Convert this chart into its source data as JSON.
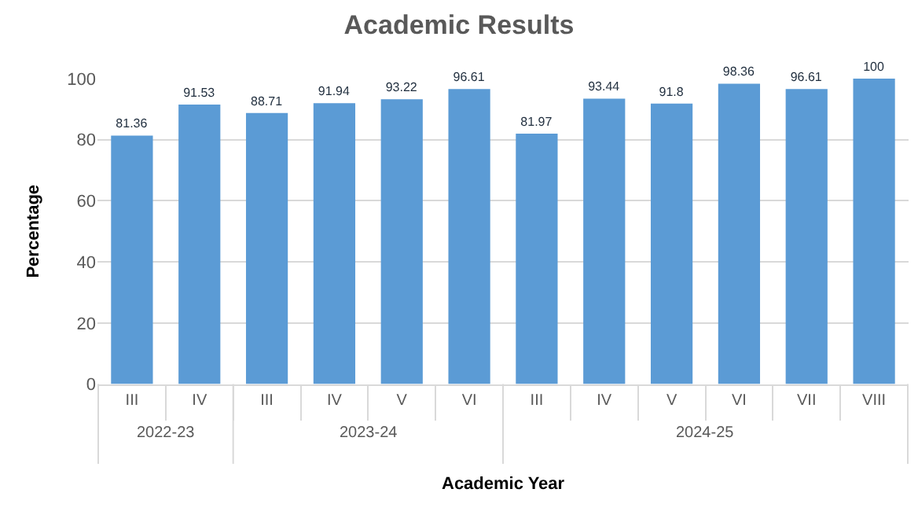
{
  "chart_data": {
    "type": "bar",
    "title": "Academic Results",
    "xlabel": "Academic Year",
    "ylabel": "Percentage",
    "categories": [
      "III",
      "IV",
      "III",
      "IV",
      "V",
      "VI",
      "III",
      "IV",
      "V",
      "VI",
      "VII",
      "VIII"
    ],
    "values": [
      81.36,
      91.53,
      88.71,
      91.94,
      93.22,
      96.61,
      81.97,
      93.44,
      91.8,
      98.36,
      96.61,
      100
    ],
    "color": "#5b9bd5",
    "data_labels": true,
    "grid": "y",
    "ylim": [
      0,
      100
    ],
    "yticks": [
      0,
      20,
      40,
      60,
      80,
      100
    ],
    "annotations": [
      "2022-23",
      "2023-24",
      "2024-25"
    ]
  }
}
